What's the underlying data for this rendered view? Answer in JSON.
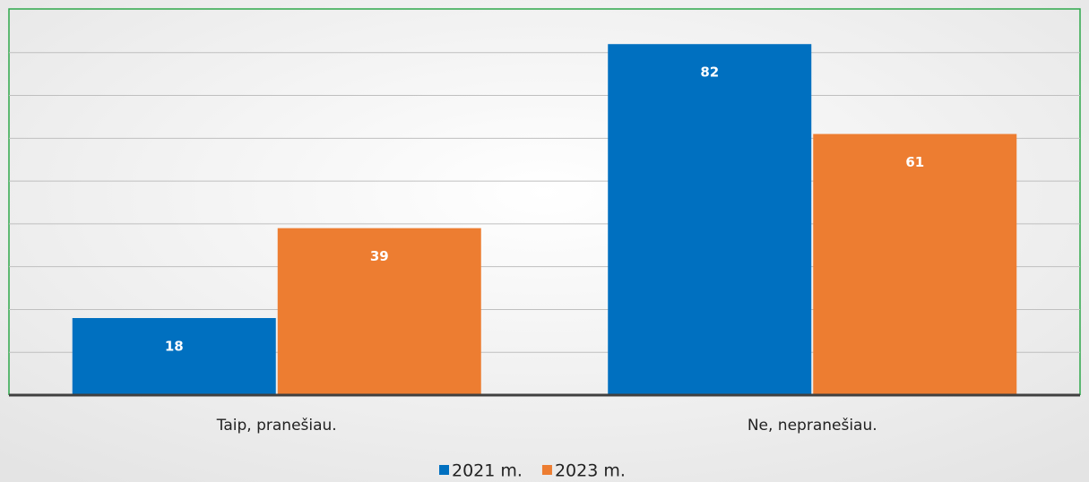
{
  "chart_data": {
    "type": "bar",
    "categories": [
      "Taip, pranešiau.",
      "Ne, nepranešiau."
    ],
    "series": [
      {
        "name": "2021 m.",
        "color": "#0070c0",
        "values": [
          18,
          82
        ]
      },
      {
        "name": "2023 m.",
        "color": "#ed7d31",
        "values": [
          39,
          61
        ]
      }
    ],
    "ylim": [
      0,
      90
    ],
    "yticks": [
      0,
      10,
      20,
      30,
      40,
      50,
      60,
      70,
      80,
      90
    ],
    "grid": true,
    "legend": "bottom"
  }
}
